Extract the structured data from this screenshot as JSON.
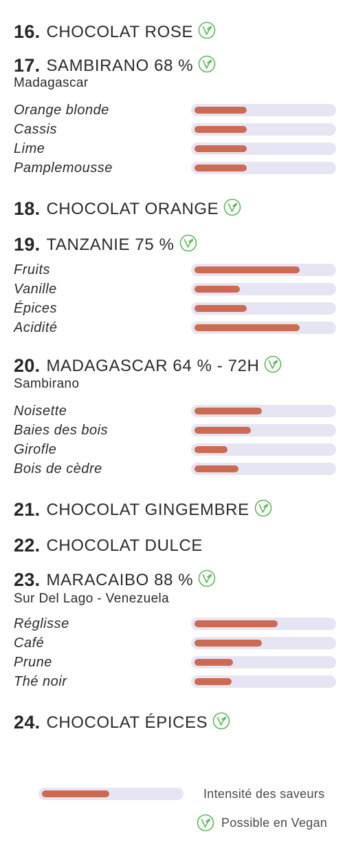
{
  "colors": {
    "bar_fill": "#cd6a52",
    "bar_track": "#e6e5f4",
    "vegan_icon": "#5cb85c"
  },
  "products": [
    {
      "number": "16.",
      "name": "CHOCOLAT ROSE",
      "vegan": true,
      "origin": "",
      "flavors": []
    },
    {
      "number": "17.",
      "name": "SAMBIRANO 68 %",
      "vegan": true,
      "origin": "Madagascar",
      "flavors": [
        {
          "label": "Orange  blonde",
          "intensity": 0.38
        },
        {
          "label": "Cassis",
          "intensity": 0.38
        },
        {
          "label": "Lime",
          "intensity": 0.38
        },
        {
          "label": "Pamplemousse",
          "intensity": 0.38
        }
      ]
    },
    {
      "number": "18.",
      "name": "CHOCOLAT ORANGE",
      "vegan": true,
      "origin": "",
      "flavors": []
    },
    {
      "number": "19.",
      "name": "TANZANIE 75 %",
      "vegan": true,
      "origin": "",
      "flavors": [
        {
          "label": "Fruits",
          "intensity": 0.76
        },
        {
          "label": "Vanille",
          "intensity": 0.33
        },
        {
          "label": "Épices",
          "intensity": 0.38
        },
        {
          "label": "Acidité",
          "intensity": 0.76
        }
      ]
    },
    {
      "number": "20.",
      "name": "MADAGASCAR 64 % - 72H",
      "vegan": true,
      "origin": "Sambirano",
      "flavors": [
        {
          "label": "Noisette",
          "intensity": 0.49
        },
        {
          "label": "Baies des bois",
          "intensity": 0.41
        },
        {
          "label": "Girofle",
          "intensity": 0.24
        },
        {
          "label": "Bois de cèdre",
          "intensity": 0.32
        }
      ]
    },
    {
      "number": "21.",
      "name": "CHOCOLAT GINGEMBRE",
      "vegan": true,
      "origin": "",
      "flavors": []
    },
    {
      "number": "22.",
      "name": "CHOCOLAT DULCE",
      "vegan": false,
      "origin": "",
      "flavors": []
    },
    {
      "number": "23.",
      "name": "MARACAIBO 88 %",
      "vegan": true,
      "origin": "Sur Del Lago - Venezuela",
      "flavors": [
        {
          "label": "Réglisse",
          "intensity": 0.6
        },
        {
          "label": "Café",
          "intensity": 0.49
        },
        {
          "label": "Prune",
          "intensity": 0.28
        },
        {
          "label": "Thé noir",
          "intensity": 0.27
        }
      ]
    },
    {
      "number": "24.",
      "name": "CHOCOLAT ÉPICES",
      "vegan": true,
      "origin": "",
      "flavors": []
    }
  ],
  "legend": {
    "intensity_label": "Intensité des saveurs",
    "intensity_sample": 0.49,
    "vegan_label": "Possible en Vegan"
  }
}
